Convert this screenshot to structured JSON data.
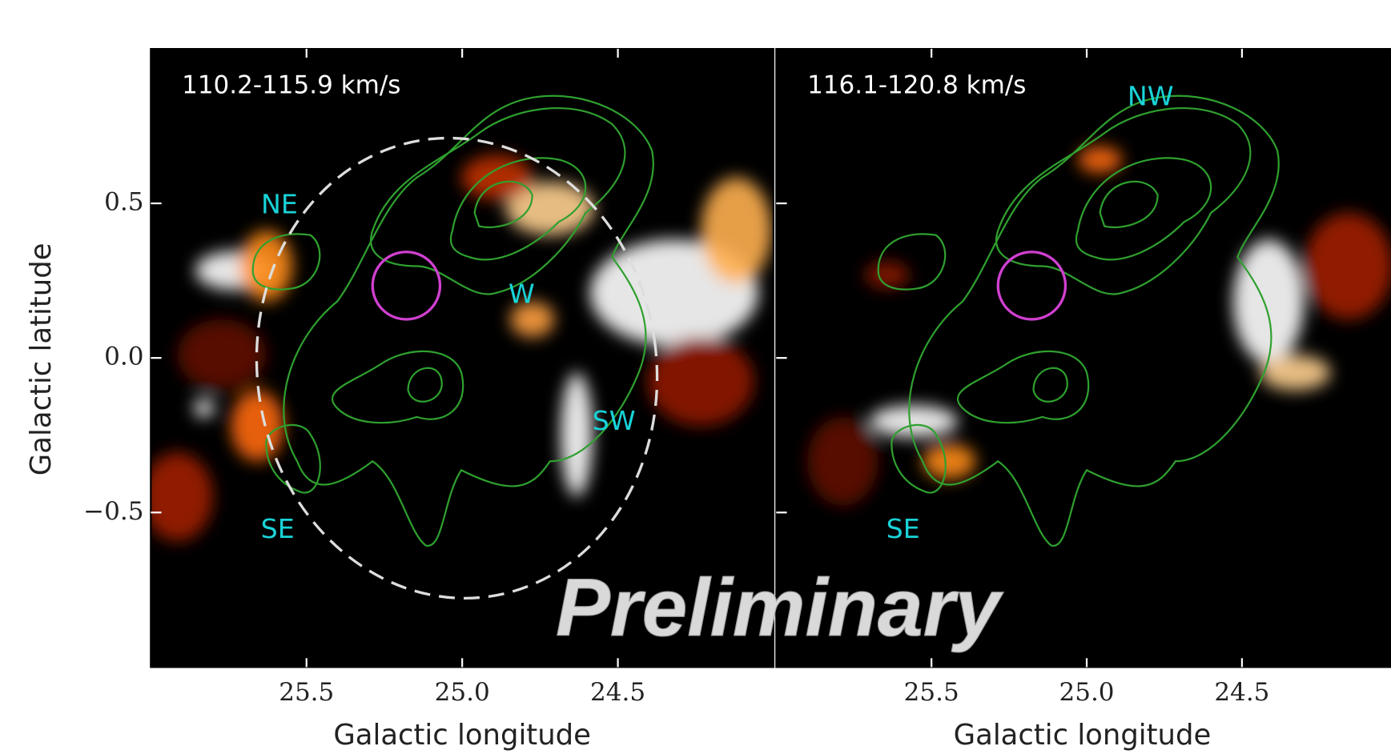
{
  "chart_data": [
    {
      "type": "map",
      "title": "110.2-115.9 km/s",
      "xlabel": "Galactic longitude",
      "ylabel": "Galactic latitude",
      "xlim": [
        26.0,
        24.0
      ],
      "ylim": [
        -1.0,
        1.0
      ],
      "xticks": [
        25.5,
        {
          "value": 25,
          "label": "25.0"
        },
        24.5
      ],
      "yticks": [
        0.5,
        {
          "value": 0,
          "label": "0.0"
        },
        {
          "value": -0.5,
          "label": "−0.5"
        }
      ],
      "annotations": [
        "NE",
        "W",
        "SW",
        "SE"
      ]
    },
    {
      "type": "map",
      "title": "116.1-120.8 km/s",
      "xlabel": "Galactic longitude",
      "xlim": [
        26.0,
        24.0
      ],
      "ylim": [
        -1.0,
        1.0
      ],
      "xticks": [
        25.5,
        {
          "value": 25,
          "label": "25.0"
        },
        24.5
      ],
      "annotations": [
        "NW",
        "SE"
      ]
    }
  ],
  "watermark": "Preliminary"
}
